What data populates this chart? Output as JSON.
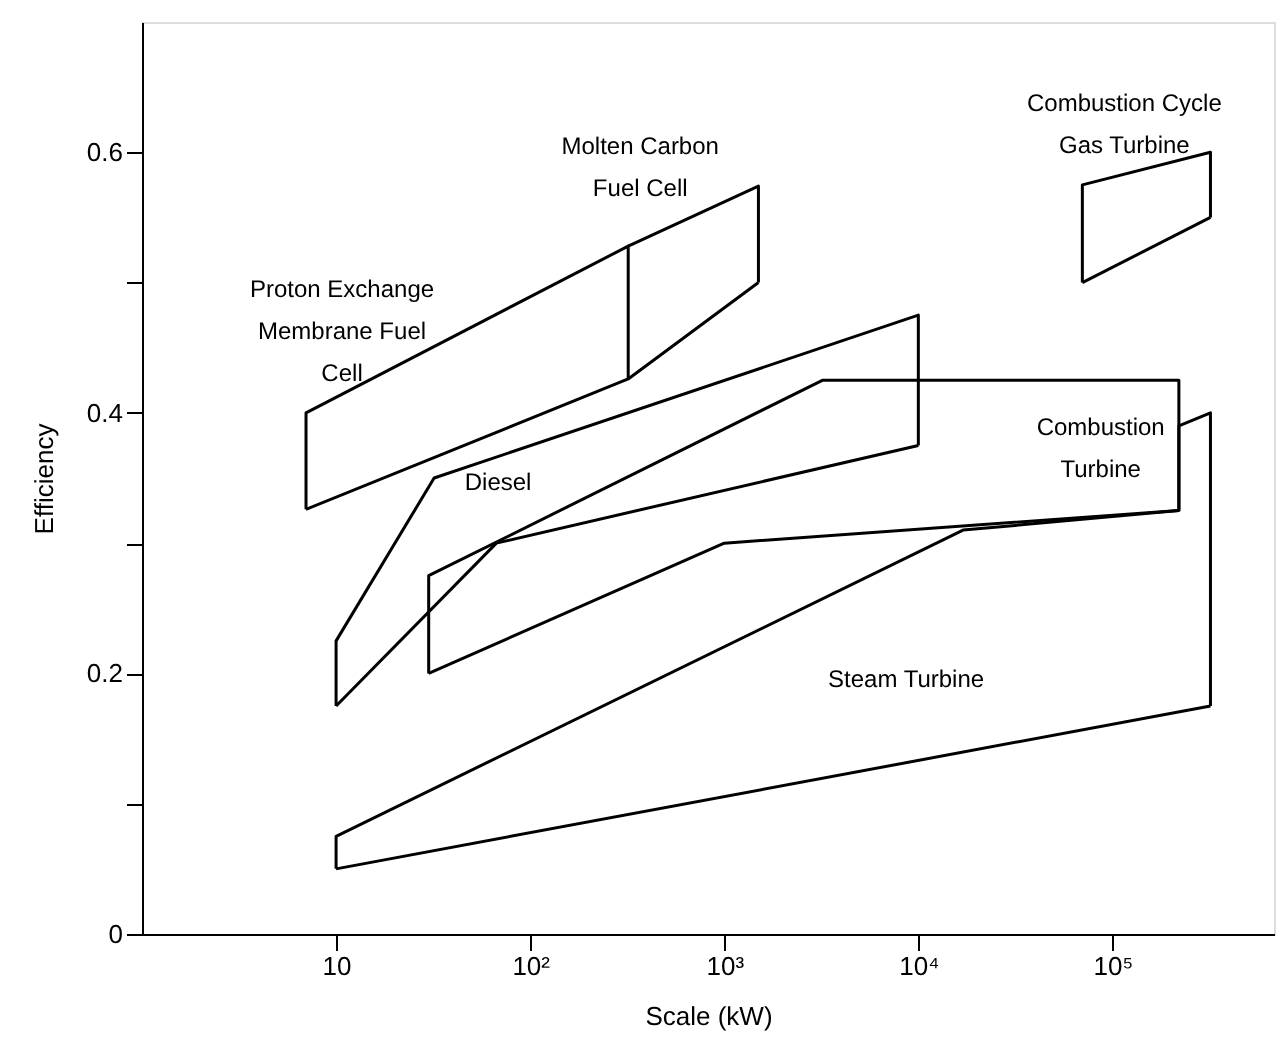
{
  "chart_data": {
    "type": "line",
    "xlabel": "Scale (kW)",
    "ylabel": "Efficiency",
    "log": "x",
    "grid": false,
    "line_style": "solid",
    "marker": "none",
    "xlim": [
      1,
      680000
    ],
    "ylim": [
      0,
      0.7
    ],
    "xticks": [
      10,
      {
        "value": 100,
        "label": "10²"
      },
      {
        "value": 1000,
        "label": "10³"
      },
      {
        "value": 10000,
        "label": "10⁴"
      },
      {
        "value": 100000,
        "label": "10⁵"
      }
    ],
    "yticks": [
      0,
      {
        "value": 0.1,
        "label": null
      },
      0.2,
      {
        "value": 0.3,
        "label": null
      },
      0.4,
      {
        "value": 0.5,
        "label": null
      },
      0.6
    ],
    "series": [
      {
        "name": "Proton Exchange\nMembrane Fuel\nCell",
        "color": "#000000",
        "x": [
          7,
          7,
          320,
          320
        ],
        "values": [
          0.326,
          0.4,
          0.528,
          0.426
        ]
      },
      {
        "color": "#000000",
        "x": [
          7,
          320,
          1500
        ],
        "values": [
          0.326,
          0.426,
          0.5
        ]
      },
      {
        "name": "Molten Carbon\nFuel Cell",
        "color": "#000000",
        "x": [
          320,
          1500,
          1500
        ],
        "values": [
          0.528,
          0.574,
          0.5
        ]
      },
      {
        "name": "Combustion Cycle\nGas Turbine",
        "color": "#000000",
        "x": [
          70000,
          70000,
          320000,
          320000
        ],
        "values": [
          0.5,
          0.575,
          0.6,
          0.55
        ]
      },
      {
        "color": "#000000",
        "x": [
          70000,
          320000
        ],
        "values": [
          0.5,
          0.55
        ]
      },
      {
        "name": "Diesel",
        "color": "#000000",
        "x": [
          10,
          10,
          32,
          10000,
          10000
        ],
        "values": [
          0.175,
          0.225,
          0.35,
          0.475,
          0.375
        ]
      },
      {
        "color": "#000000",
        "x": [
          10,
          67,
          10000
        ],
        "values": [
          0.175,
          0.3,
          0.375
        ]
      },
      {
        "name": "Combustion\nTurbine",
        "color": "#000000",
        "x": [
          30,
          30,
          3200,
          220000,
          220000
        ],
        "values": [
          0.2,
          0.275,
          0.425,
          0.425,
          0.325
        ]
      },
      {
        "color": "#000000",
        "x": [
          30,
          1000,
          220000
        ],
        "values": [
          0.2,
          0.3,
          0.325
        ]
      },
      {
        "name": "Steam Turbine",
        "color": "#000000",
        "x": [
          10,
          10,
          17000,
          220000,
          220000,
          320000,
          320000
        ],
        "values": [
          0.05,
          0.075,
          0.31,
          0.325,
          0.39,
          0.4,
          0.175
        ]
      },
      {
        "color": "#000000",
        "x": [
          10,
          320000
        ],
        "values": [
          0.05,
          0.175
        ]
      }
    ]
  }
}
